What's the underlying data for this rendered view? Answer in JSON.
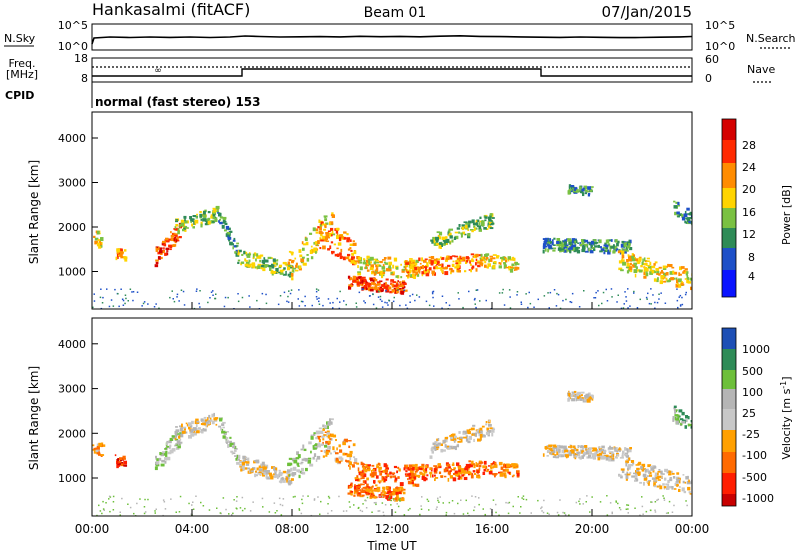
{
  "header": {
    "station": "Hankasalmi (fitACF)",
    "beam": "Beam 01",
    "date": "07/Jan/2015"
  },
  "noise_panel": {
    "left_label": "N.Sky",
    "right_label": "N.Search",
    "left_ticks": [
      "10^5",
      "10^0"
    ],
    "right_ticks": [
      "10^5",
      "10^0"
    ]
  },
  "freq_panel": {
    "left_label_1": "Freq.",
    "left_label_2": "[MHz]",
    "left_ticks": [
      "18",
      "8"
    ],
    "right_label": "Nave",
    "right_ticks": [
      "60",
      "0"
    ]
  },
  "cpid": {
    "label": "CPID",
    "text": "normal (fast stereo) 153"
  },
  "chart_data": [
    {
      "type": "heatmap",
      "quantity": "Power",
      "ylabel": "Slant Range [km]",
      "yticks": [
        "1000",
        "2000",
        "3000",
        "4000"
      ],
      "ylim": [
        180,
        4600
      ],
      "xlim": [
        "00:00",
        "24:00"
      ],
      "colorbar": {
        "label": "Power [dB]",
        "ticks": [
          "28",
          "24",
          "20",
          "16",
          "12",
          "8",
          "4"
        ],
        "colors": [
          "#0a14ff",
          "#1e50c8",
          "#2e8b57",
          "#7ac142",
          "#ffd400",
          "#ff8c00",
          "#ff2a00",
          "#d40000"
        ]
      }
    },
    {
      "type": "heatmap",
      "quantity": "Velocity",
      "ylabel": "Slant Range [km]",
      "yticks": [
        "1000",
        "2000",
        "3000",
        "4000"
      ],
      "ylim": [
        180,
        4600
      ],
      "xlim": [
        "00:00",
        "24:00"
      ],
      "xlabel": "Time UT",
      "xticks": [
        "00:00",
        "04:00",
        "08:00",
        "12:00",
        "16:00",
        "20:00",
        "00:00"
      ],
      "colorbar": {
        "label_prefix": "Velocity  [m s",
        "label_sup": "-1",
        "label_suffix": "]",
        "ticks": [
          "1000",
          "500",
          "100",
          "25",
          "-25",
          "-100",
          "-500",
          "-1000"
        ],
        "colors": [
          "#1d4fb5",
          "#2e8b57",
          "#6dbf3a",
          "#b5b5b5",
          "#c8c8c8",
          "#ffa000",
          "#ff6a00",
          "#ff1e00",
          "#c80000"
        ]
      }
    }
  ]
}
